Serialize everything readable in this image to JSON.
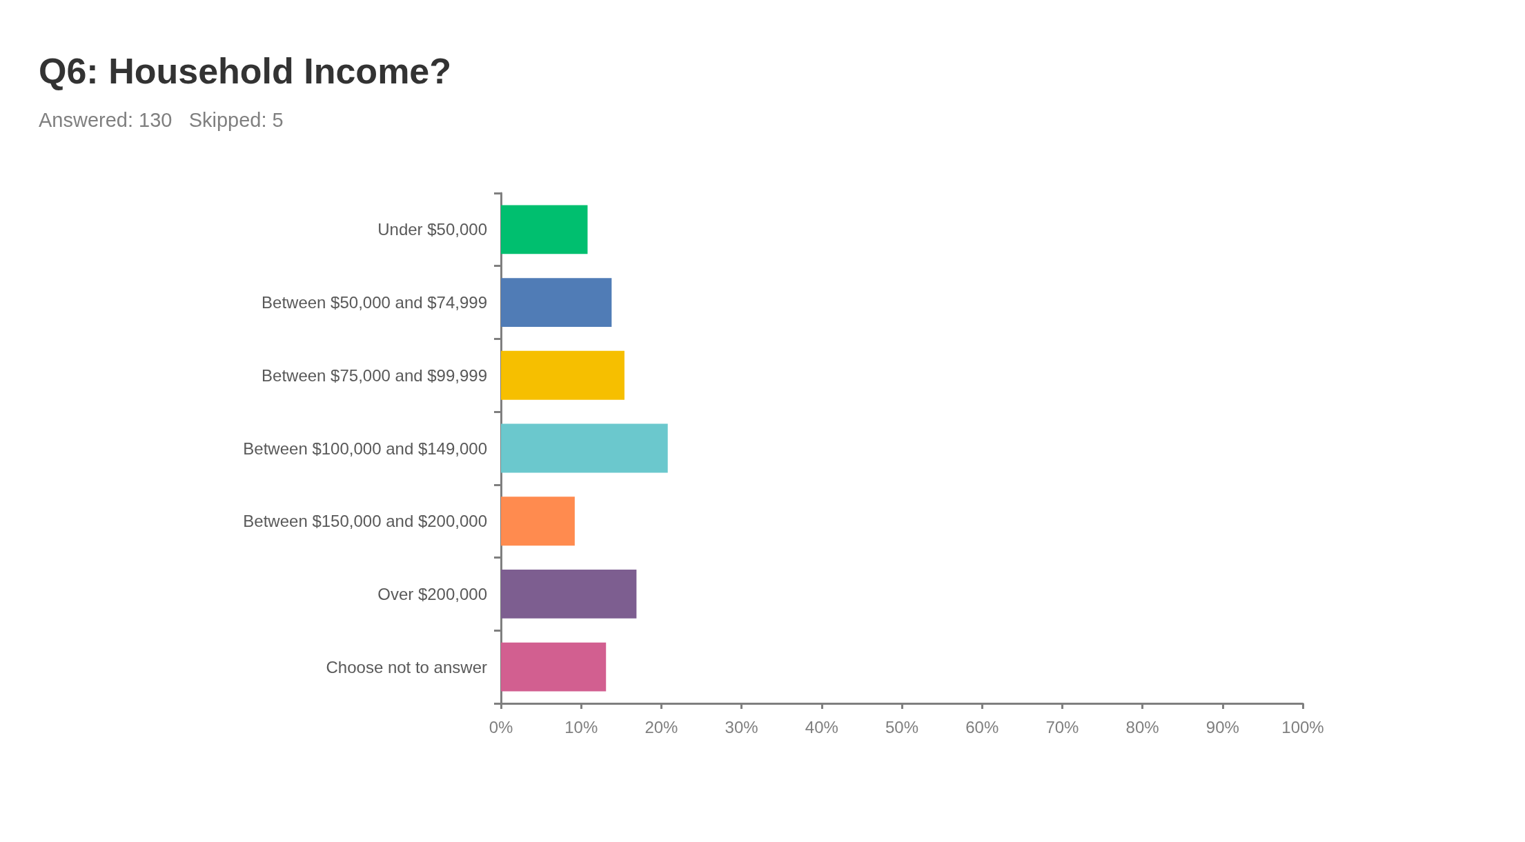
{
  "chart_data": {
    "type": "bar",
    "orientation": "horizontal",
    "title": "Q6: Household Income?",
    "subtitle": "Answered: 130   Skipped: 5",
    "categories": [
      "Under $50,000",
      "Between $50,000 and $74,999",
      "Between $75,000 and $99,999",
      "Between $100,000 and $149,000",
      "Between $150,000 and $200,000",
      "Over $200,000",
      "Choose not to answer"
    ],
    "values": [
      10.8,
      13.8,
      15.4,
      20.8,
      9.2,
      16.9,
      13.1
    ],
    "colors": [
      "#00bf6f",
      "#507cb6",
      "#f6bf00",
      "#6bc8cd",
      "#ff8b4f",
      "#7d5e90",
      "#d25f90"
    ],
    "xlim": [
      0,
      100
    ],
    "xticks": [
      {
        "value": 0,
        "label": "0%"
      },
      {
        "value": 10,
        "label": "10%"
      },
      {
        "value": 20,
        "label": "20%"
      },
      {
        "value": 30,
        "label": "30%"
      },
      {
        "value": 40,
        "label": "40%"
      },
      {
        "value": 50,
        "label": "50%"
      },
      {
        "value": 60,
        "label": "60%"
      },
      {
        "value": 70,
        "label": "70%"
      },
      {
        "value": 80,
        "label": "80%"
      },
      {
        "value": 90,
        "label": "90%"
      },
      {
        "value": 100,
        "label": "100%"
      }
    ]
  }
}
